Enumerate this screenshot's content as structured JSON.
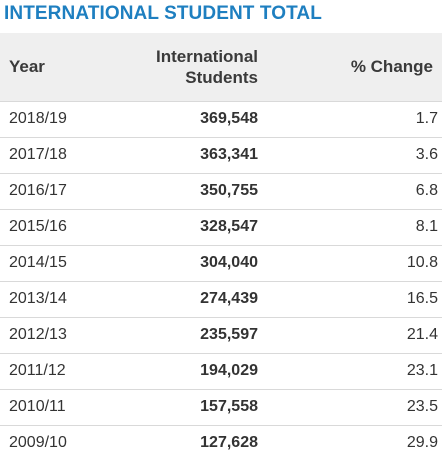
{
  "title": "INTERNATIONAL STUDENT TOTAL",
  "headers": {
    "year": "Year",
    "international_line1": "International",
    "international_line2": "Students",
    "change": "% Change"
  },
  "rows": [
    {
      "year": "2018/19",
      "students": "369,548",
      "change": "1.7"
    },
    {
      "year": "2017/18",
      "students": "363,341",
      "change": "3.6"
    },
    {
      "year": "2016/17",
      "students": "350,755",
      "change": "6.8"
    },
    {
      "year": "2015/16",
      "students": "328,547",
      "change": "8.1"
    },
    {
      "year": "2014/15",
      "students": "304,040",
      "change": "10.8"
    },
    {
      "year": "2013/14",
      "students": "274,439",
      "change": "16.5"
    },
    {
      "year": "2012/13",
      "students": "235,597",
      "change": "21.4"
    },
    {
      "year": "2011/12",
      "students": "194,029",
      "change": "23.1"
    },
    {
      "year": "2010/11",
      "students": "157,558",
      "change": "23.5"
    },
    {
      "year": "2009/10",
      "students": "127,628",
      "change": "29.9"
    }
  ],
  "colors": {
    "title": "#1e7fc0",
    "header_bg": "#efefef",
    "row_divider": "#d9d9d9"
  }
}
